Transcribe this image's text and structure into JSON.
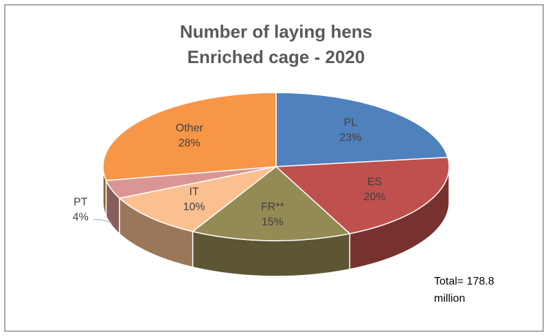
{
  "chart_data": {
    "type": "pie",
    "title": "Number of laying hens",
    "subtitle": "Enriched cage - 2020",
    "categories": [
      "PL",
      "ES",
      "FR**",
      "IT",
      "PT",
      "Other"
    ],
    "values": [
      23,
      20,
      15,
      10,
      4,
      28
    ],
    "value_labels": [
      "23%",
      "20%",
      "15%",
      "10%",
      "4%",
      "28%"
    ],
    "colors": [
      "#4f81bd",
      "#c0504d",
      "#948a54",
      "#fac090",
      "#d99694",
      "#f79646"
    ],
    "annotation": [
      "Total= 178.8",
      "million"
    ]
  }
}
